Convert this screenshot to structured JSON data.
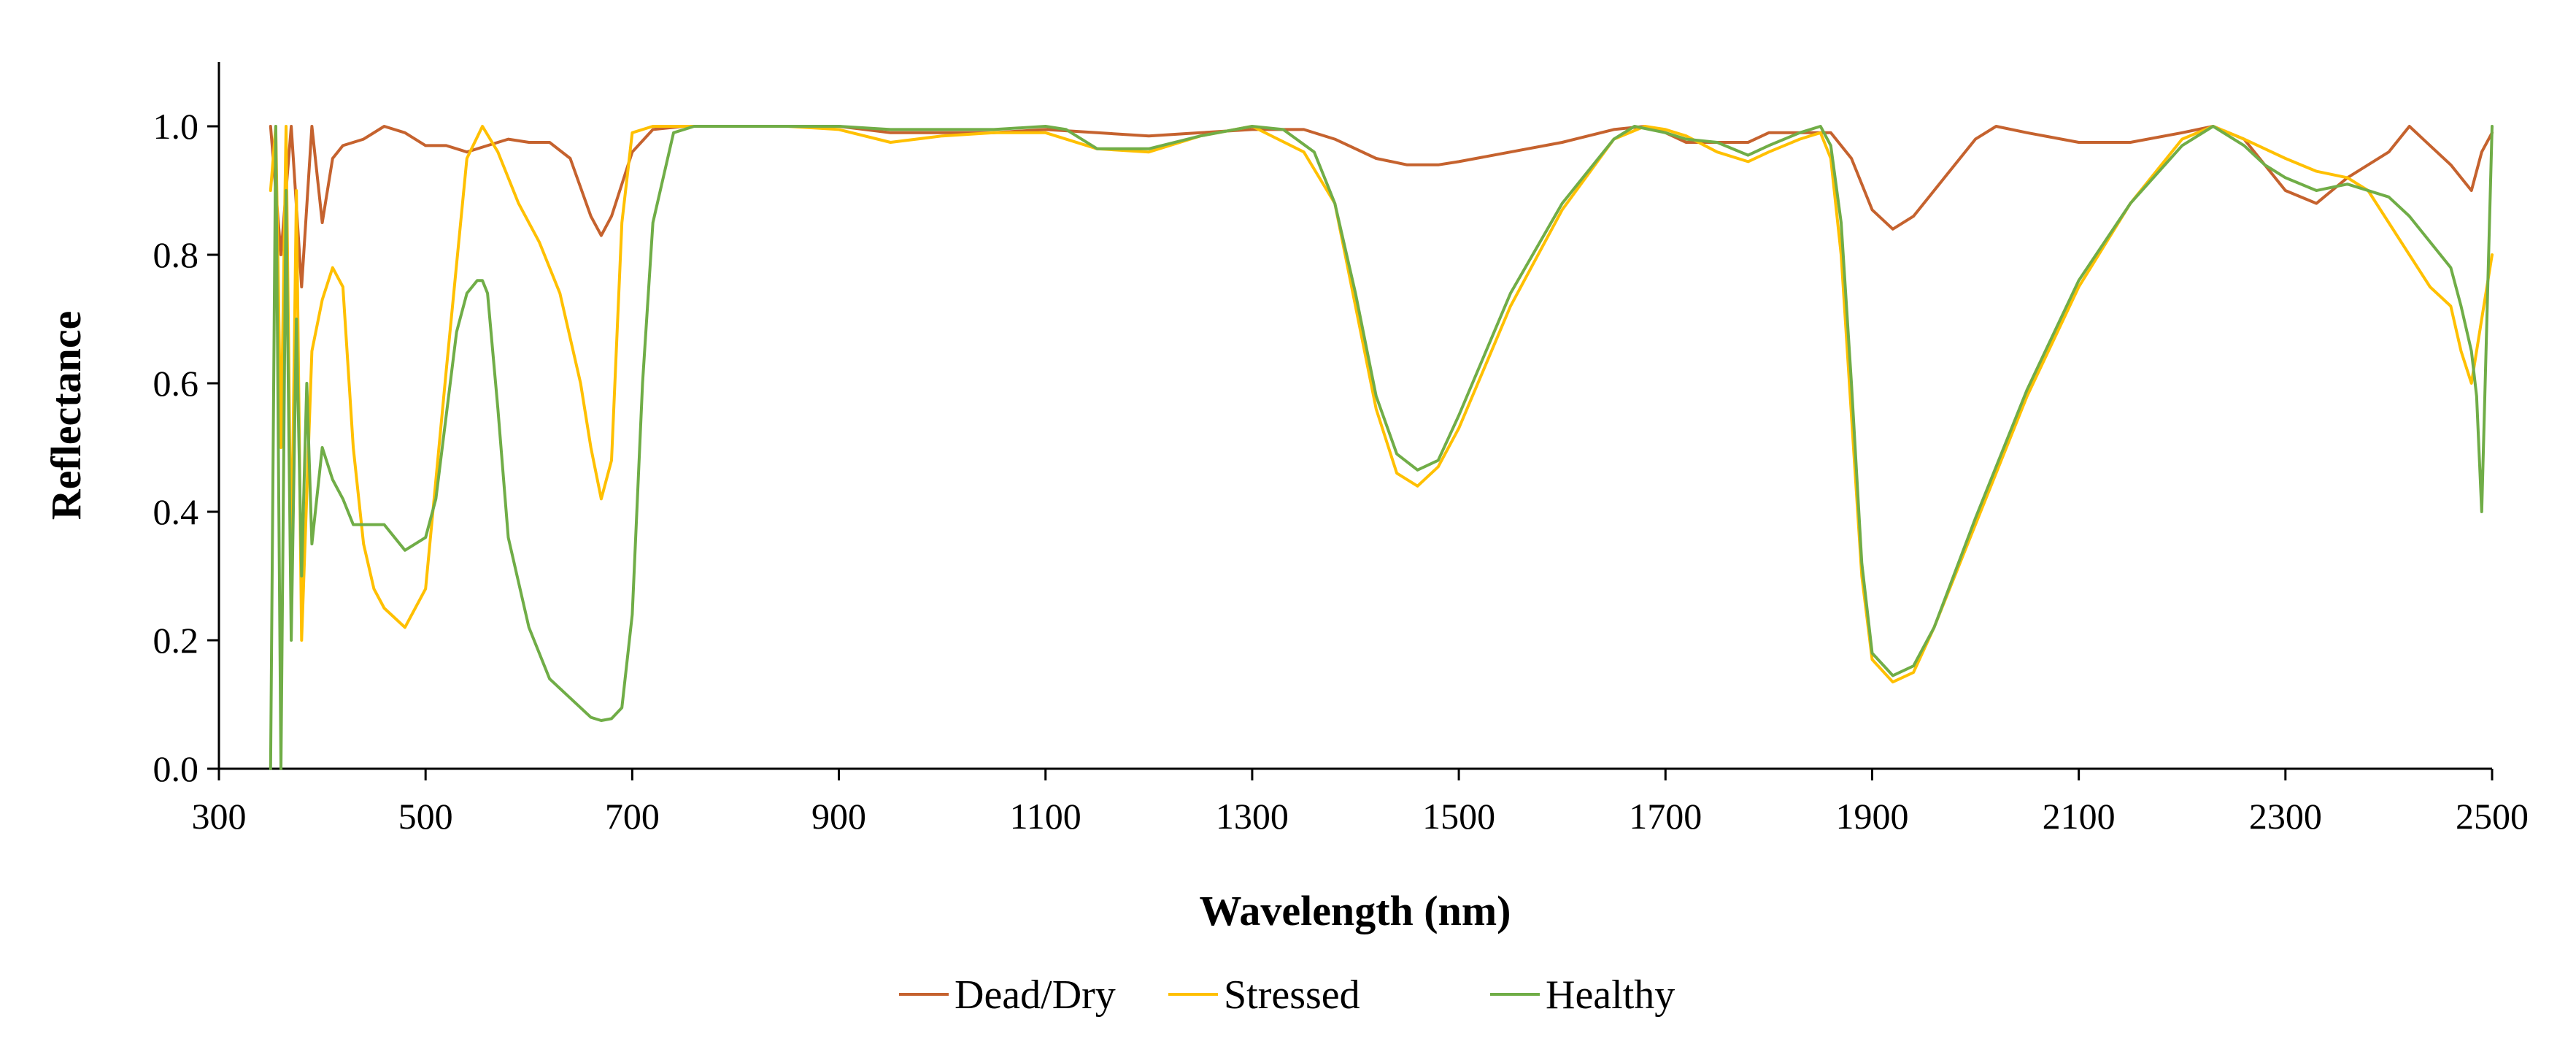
{
  "chart_data": {
    "type": "line",
    "title": "",
    "xlabel": "Wavelength (nm)",
    "ylabel": "Reflectance",
    "xlim": [
      300,
      2500
    ],
    "ylim": [
      0,
      1.1
    ],
    "xticks": [
      300,
      500,
      700,
      900,
      1100,
      1300,
      1500,
      1700,
      1900,
      2100,
      2300,
      2500
    ],
    "yticks": [
      0.0,
      0.2,
      0.4,
      0.6,
      0.8,
      1.0
    ],
    "ytick_labels": [
      "0.0",
      "0.2",
      "0.4",
      "0.6",
      "0.8",
      "1.0"
    ],
    "grid": false,
    "legend_position": "bottom-center",
    "series": [
      {
        "name": "Dead/Dry",
        "color": "#C5622E",
        "x": [
          350,
          360,
          370,
          380,
          390,
          400,
          410,
          420,
          440,
          460,
          480,
          500,
          520,
          540,
          560,
          580,
          600,
          620,
          640,
          660,
          670,
          680,
          700,
          720,
          750,
          800,
          850,
          900,
          950,
          1000,
          1050,
          1100,
          1150,
          1200,
          1250,
          1300,
          1350,
          1380,
          1420,
          1450,
          1480,
          1500,
          1550,
          1600,
          1650,
          1680,
          1700,
          1720,
          1750,
          1780,
          1800,
          1830,
          1860,
          1880,
          1900,
          1920,
          1940,
          1960,
          2000,
          2020,
          2050,
          2100,
          2150,
          2200,
          2230,
          2260,
          2300,
          2330,
          2360,
          2400,
          2420,
          2440,
          2460,
          2480,
          2490,
          2500
        ],
        "y": [
          1.0,
          0.8,
          1.0,
          0.75,
          1.0,
          0.85,
          0.95,
          0.97,
          0.98,
          1.0,
          0.99,
          0.97,
          0.97,
          0.96,
          0.97,
          0.98,
          0.975,
          0.975,
          0.95,
          0.86,
          0.83,
          0.86,
          0.96,
          0.995,
          1.0,
          1.0,
          1.0,
          1.0,
          0.99,
          0.99,
          0.99,
          0.995,
          0.99,
          0.985,
          0.99,
          0.995,
          0.995,
          0.98,
          0.95,
          0.94,
          0.94,
          0.945,
          0.96,
          0.975,
          0.995,
          1.0,
          0.99,
          0.975,
          0.975,
          0.975,
          0.99,
          0.99,
          0.99,
          0.95,
          0.87,
          0.84,
          0.86,
          0.9,
          0.98,
          1.0,
          0.99,
          0.975,
          0.975,
          0.99,
          1.0,
          0.98,
          0.9,
          0.88,
          0.92,
          0.96,
          1.0,
          0.97,
          0.94,
          0.9,
          0.96,
          0.99
        ]
      },
      {
        "name": "Stressed",
        "color": "#FFC000",
        "x": [
          350,
          355,
          360,
          365,
          370,
          375,
          380,
          390,
          400,
          410,
          420,
          430,
          440,
          450,
          460,
          480,
          500,
          520,
          540,
          555,
          570,
          590,
          610,
          630,
          650,
          660,
          670,
          680,
          690,
          700,
          720,
          750,
          800,
          850,
          900,
          950,
          1000,
          1050,
          1100,
          1150,
          1200,
          1250,
          1300,
          1350,
          1380,
          1400,
          1420,
          1440,
          1460,
          1480,
          1500,
          1550,
          1600,
          1650,
          1680,
          1700,
          1720,
          1750,
          1780,
          1800,
          1830,
          1850,
          1860,
          1870,
          1880,
          1890,
          1900,
          1920,
          1940,
          1960,
          2000,
          2050,
          2100,
          2150,
          2200,
          2230,
          2260,
          2300,
          2330,
          2360,
          2380,
          2400,
          2420,
          2440,
          2460,
          2470,
          2480,
          2490,
          2500
        ],
        "y": [
          0.9,
          1.0,
          0.5,
          1.0,
          0.3,
          0.9,
          0.2,
          0.65,
          0.73,
          0.78,
          0.75,
          0.5,
          0.35,
          0.28,
          0.25,
          0.22,
          0.28,
          0.62,
          0.95,
          1.0,
          0.96,
          0.88,
          0.82,
          0.74,
          0.6,
          0.5,
          0.42,
          0.48,
          0.85,
          0.99,
          1.0,
          1.0,
          1.0,
          1.0,
          0.995,
          0.975,
          0.985,
          0.99,
          0.99,
          0.965,
          0.96,
          0.985,
          1.0,
          0.96,
          0.88,
          0.72,
          0.56,
          0.46,
          0.44,
          0.47,
          0.53,
          0.72,
          0.87,
          0.98,
          1.0,
          0.995,
          0.985,
          0.96,
          0.945,
          0.96,
          0.98,
          0.99,
          0.95,
          0.8,
          0.55,
          0.3,
          0.17,
          0.135,
          0.15,
          0.22,
          0.38,
          0.58,
          0.75,
          0.88,
          0.98,
          1.0,
          0.98,
          0.95,
          0.93,
          0.92,
          0.9,
          0.85,
          0.8,
          0.75,
          0.72,
          0.65,
          0.6,
          0.7,
          0.8
        ]
      },
      {
        "name": "Healthy",
        "color": "#70AD47",
        "x": [
          350,
          355,
          360,
          365,
          370,
          375,
          380,
          385,
          390,
          400,
          410,
          420,
          430,
          440,
          460,
          480,
          500,
          510,
          520,
          530,
          540,
          550,
          555,
          560,
          570,
          580,
          600,
          620,
          640,
          660,
          670,
          680,
          690,
          700,
          710,
          720,
          740,
          760,
          800,
          850,
          900,
          950,
          1000,
          1050,
          1100,
          1120,
          1150,
          1200,
          1250,
          1300,
          1330,
          1360,
          1380,
          1400,
          1420,
          1440,
          1460,
          1480,
          1500,
          1550,
          1600,
          1650,
          1670,
          1700,
          1720,
          1750,
          1780,
          1800,
          1830,
          1850,
          1860,
          1870,
          1880,
          1890,
          1900,
          1920,
          1940,
          1960,
          2000,
          2050,
          2100,
          2150,
          2200,
          2230,
          2260,
          2280,
          2300,
          2330,
          2360,
          2400,
          2420,
          2440,
          2460,
          2470,
          2480,
          2485,
          2490,
          2495,
          2500
        ],
        "y": [
          0.0,
          1.0,
          0.0,
          0.9,
          0.2,
          0.7,
          0.3,
          0.6,
          0.35,
          0.5,
          0.45,
          0.42,
          0.38,
          0.38,
          0.38,
          0.34,
          0.36,
          0.42,
          0.55,
          0.68,
          0.74,
          0.76,
          0.76,
          0.74,
          0.56,
          0.36,
          0.22,
          0.14,
          0.11,
          0.08,
          0.075,
          0.078,
          0.095,
          0.24,
          0.6,
          0.85,
          0.99,
          1.0,
          1.0,
          1.0,
          1.0,
          0.995,
          0.995,
          0.995,
          1.0,
          0.995,
          0.965,
          0.965,
          0.985,
          1.0,
          0.995,
          0.96,
          0.88,
          0.74,
          0.58,
          0.49,
          0.465,
          0.48,
          0.55,
          0.74,
          0.88,
          0.98,
          1.0,
          0.99,
          0.98,
          0.975,
          0.955,
          0.97,
          0.99,
          1.0,
          0.97,
          0.85,
          0.6,
          0.32,
          0.18,
          0.145,
          0.16,
          0.22,
          0.39,
          0.59,
          0.76,
          0.88,
          0.97,
          1.0,
          0.97,
          0.94,
          0.92,
          0.9,
          0.91,
          0.89,
          0.86,
          0.82,
          0.78,
          0.72,
          0.65,
          0.58,
          0.4,
          0.7,
          1.0
        ]
      }
    ]
  }
}
